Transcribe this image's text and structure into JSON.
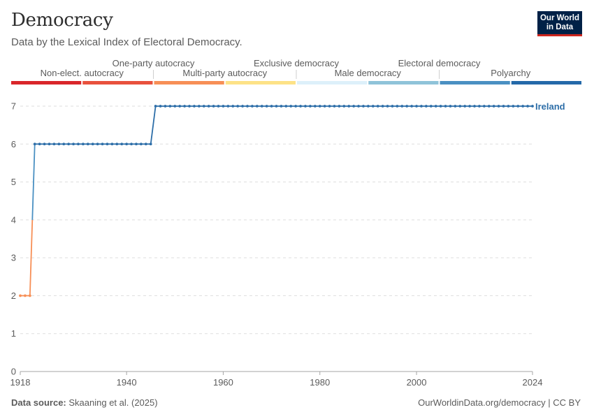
{
  "header": {
    "title": "Democracy",
    "subtitle": "Data by the Lexical Index of Electoral Democracy."
  },
  "logo": {
    "line1": "Our World",
    "line2": "in Data"
  },
  "footer": {
    "source_label": "Data source:",
    "source_text": "Skaaning et al. (2025)",
    "link_text": "OurWorldinData.org/democracy | CC BY"
  },
  "legend": {
    "categories": [
      {
        "label": "Non-elect. autocracy",
        "color": "#d9262b",
        "row": "lower"
      },
      {
        "label": "One-party autocracy",
        "color": "#e8513d",
        "row": "upper"
      },
      {
        "label": "Multi-party autocracy",
        "color": "#f78f56",
        "row": "lower"
      },
      {
        "label": "Exclusive democracy",
        "color": "#fde287",
        "row": "upper"
      },
      {
        "label": "Male democracy",
        "color": "#ddf0fa",
        "row": "lower"
      },
      {
        "label": "Electoral democracy",
        "color": "#8fc3d9",
        "row": "upper"
      },
      {
        "label": "Polyarchy",
        "color": "#4a90c2",
        "row": "lower"
      },
      {
        "label": "",
        "color": "#2469a9",
        "row": "none"
      }
    ]
  },
  "chart_data": {
    "type": "line",
    "title": "Democracy",
    "subtitle": "Data by the Lexical Index of Electoral Democracy.",
    "xlabel": "",
    "ylabel": "",
    "xlim": [
      1918,
      2024
    ],
    "ylim": [
      0,
      7
    ],
    "x_ticks": [
      1918,
      1940,
      1960,
      1980,
      2000,
      2024
    ],
    "y_ticks": [
      0,
      1,
      2,
      3,
      4,
      5,
      6,
      7
    ],
    "grid": "horizontal dashed",
    "series": [
      {
        "name": "Ireland",
        "color": "#2d6ea8",
        "segments": [
          {
            "x_start": 1918,
            "x_end": 1920,
            "value": 2
          },
          {
            "x_start": 1921,
            "x_end": 1945,
            "value": 6
          },
          {
            "x_start": 1946,
            "x_end": 2024,
            "value": 7
          }
        ]
      }
    ]
  }
}
